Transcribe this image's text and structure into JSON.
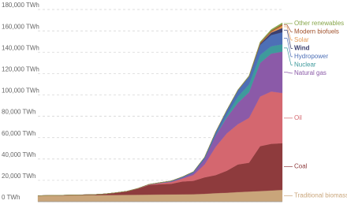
{
  "chart_data": {
    "type": "stacked-area",
    "categories": [
      null,
      null,
      null,
      null,
      null,
      null,
      null,
      null,
      null,
      null,
      null,
      null,
      null,
      null,
      null,
      null,
      null,
      null,
      null,
      null,
      null,
      null,
      null
    ],
    "ylim": [
      0,
      183000
    ],
    "yticks": [
      {
        "value": 0,
        "label": "0 TWh"
      },
      {
        "value": 20000,
        "label": "20,000 TWh"
      },
      {
        "value": 40000,
        "label": "40,000 TWh"
      },
      {
        "value": 60000,
        "label": "60,000 TWh"
      },
      {
        "value": 80000,
        "label": "80,000 TWh"
      },
      {
        "value": 100000,
        "label": "100,000 TWh"
      },
      {
        "value": 120000,
        "label": "120,000 TWh"
      },
      {
        "value": 140000,
        "label": "140,000 TWh"
      },
      {
        "value": 160000,
        "label": "160,000 TWh"
      },
      {
        "value": 180000,
        "label": "180,000 TWh"
      }
    ],
    "grid": true,
    "series": [
      {
        "name": "Traditional biomass",
        "color": "#c9a57a",
        "values": [
          5556,
          5700,
          5800,
          5900,
          6000,
          6100,
          6200,
          6300,
          6400,
          6500,
          6600,
          6700,
          6800,
          6900,
          7000,
          7400,
          8000,
          8400,
          9000,
          9500,
          10000,
          10500,
          11100
        ]
      },
      {
        "name": "Coal",
        "color": "#8e3b3d",
        "values": [
          97,
          150,
          230,
          340,
          450,
          570,
          1100,
          2100,
          3300,
          5700,
          9000,
          9600,
          10000,
          12000,
          12600,
          15400,
          16900,
          20600,
          25900,
          27000,
          42000,
          43700,
          43700
        ]
      },
      {
        "name": "Oil",
        "color": "#d4676f",
        "values": [
          0,
          0,
          0,
          0,
          0,
          0,
          0,
          10,
          60,
          180,
          380,
          1100,
          1600,
          2700,
          5400,
          12000,
          26500,
          35000,
          37700,
          42000,
          46500,
          49000,
          47000
        ]
      },
      {
        "name": "Natural gas",
        "color": "#8b5aa8",
        "values": [
          0,
          0,
          0,
          0,
          0,
          0,
          0,
          0,
          20,
          60,
          150,
          240,
          560,
          870,
          2100,
          5000,
          10600,
          15000,
          20000,
          24000,
          31500,
          35500,
          38800
        ]
      },
      {
        "name": "Nuclear",
        "color": "#3e9a9c",
        "values": [
          0,
          0,
          0,
          0,
          0,
          0,
          0,
          0,
          0,
          0,
          0,
          0,
          0,
          0,
          0,
          0,
          200,
          1960,
          5800,
          7300,
          7400,
          6900,
          6800
        ]
      },
      {
        "name": "Hydropower",
        "color": "#4d6fb6",
        "values": [
          0,
          0,
          0,
          0,
          0,
          0,
          0,
          0,
          0,
          50,
          150,
          300,
          500,
          800,
          1000,
          1800,
          3000,
          4700,
          6000,
          7400,
          9400,
          10500,
          11300
        ]
      },
      {
        "name": "Wind",
        "color": "#3b3f6e",
        "values": [
          0,
          0,
          0,
          0,
          0,
          0,
          0,
          0,
          0,
          0,
          0,
          0,
          0,
          0,
          0,
          0,
          0,
          0,
          10,
          80,
          900,
          2300,
          4000
        ]
      },
      {
        "name": "Solar",
        "color": "#e49a56",
        "values": [
          0,
          0,
          0,
          0,
          0,
          0,
          0,
          0,
          0,
          0,
          0,
          0,
          0,
          0,
          0,
          0,
          0,
          0,
          0,
          5,
          80,
          700,
          2300
        ]
      },
      {
        "name": "Modern biofuels",
        "color": "#a0522d",
        "values": [
          0,
          0,
          0,
          0,
          0,
          0,
          0,
          0,
          0,
          0,
          0,
          0,
          0,
          0,
          0,
          0,
          0,
          50,
          150,
          200,
          1000,
          1050,
          1100
        ]
      },
      {
        "name": "Other renewables",
        "color": "#88a64b",
        "values": [
          0,
          0,
          0,
          0,
          0,
          0,
          0,
          0,
          0,
          0,
          0,
          0,
          0,
          0,
          0,
          0,
          50,
          200,
          400,
          600,
          900,
          1200,
          1500
        ]
      }
    ]
  }
}
